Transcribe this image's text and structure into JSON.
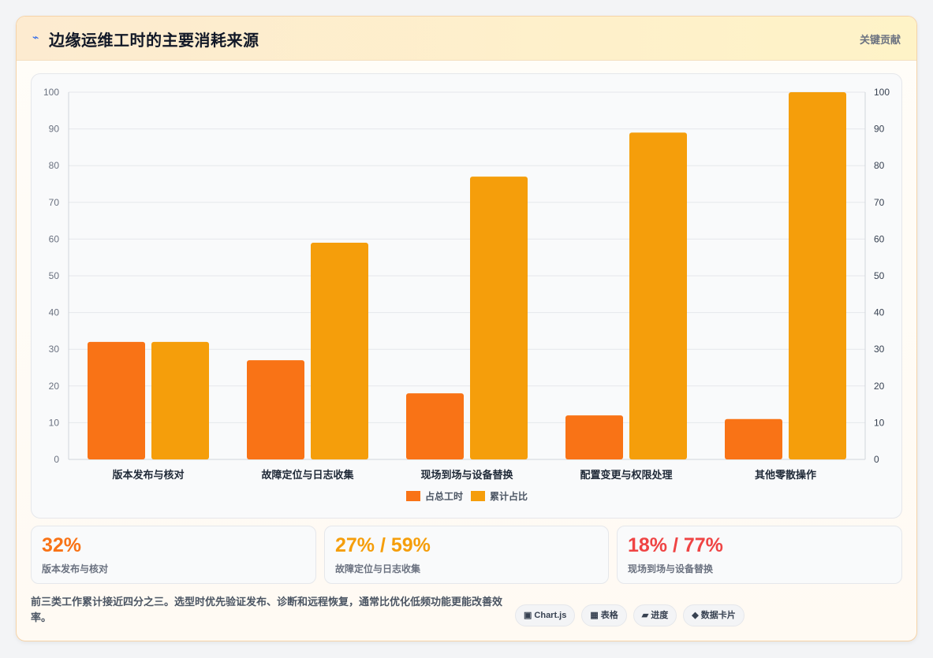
{
  "header": {
    "title_icon": "⌁",
    "title": "边缘运维工时的主要消耗来源",
    "badge": "关键贡献"
  },
  "chart_data": {
    "type": "bar",
    "categories": [
      "版本发布与核对",
      "故障定位与日志收集",
      "现场到场与设备替换",
      "配置变更与权限处理",
      "其他零散操作"
    ],
    "series": [
      {
        "name": "占总工时",
        "values": [
          32,
          27,
          18,
          12,
          11
        ],
        "color": "#f97316"
      },
      {
        "name": "累计占比",
        "values": [
          32,
          59,
          77,
          89,
          100
        ],
        "color": "#f59e0b"
      }
    ],
    "ylim": [
      0,
      100
    ],
    "yticks": [
      0,
      10,
      20,
      30,
      40,
      50,
      60,
      70,
      80,
      90,
      100
    ],
    "y2lim": [
      0,
      100
    ],
    "legend_position": "bottom",
    "grid": true
  },
  "stats": [
    {
      "value": "32%",
      "label": "版本发布与核对",
      "color": "#f97316"
    },
    {
      "value": "27% / 59%",
      "label": "故障定位与日志收集",
      "color": "#f59e0b"
    },
    {
      "value": "18% / 77%",
      "label": "现场到场与设备替换",
      "color": "#ef4444"
    }
  ],
  "note": "前三类工作累计接近四分之三。选型时优先验证发布、诊断和远程恢复，通常比优化低频功能更能改善效率。",
  "tags": [
    {
      "icon": "▣",
      "label": "Chart.js"
    },
    {
      "icon": "▦",
      "label": "表格"
    },
    {
      "icon": "▰",
      "label": "进度"
    },
    {
      "icon": "◆",
      "label": "数据卡片"
    }
  ]
}
